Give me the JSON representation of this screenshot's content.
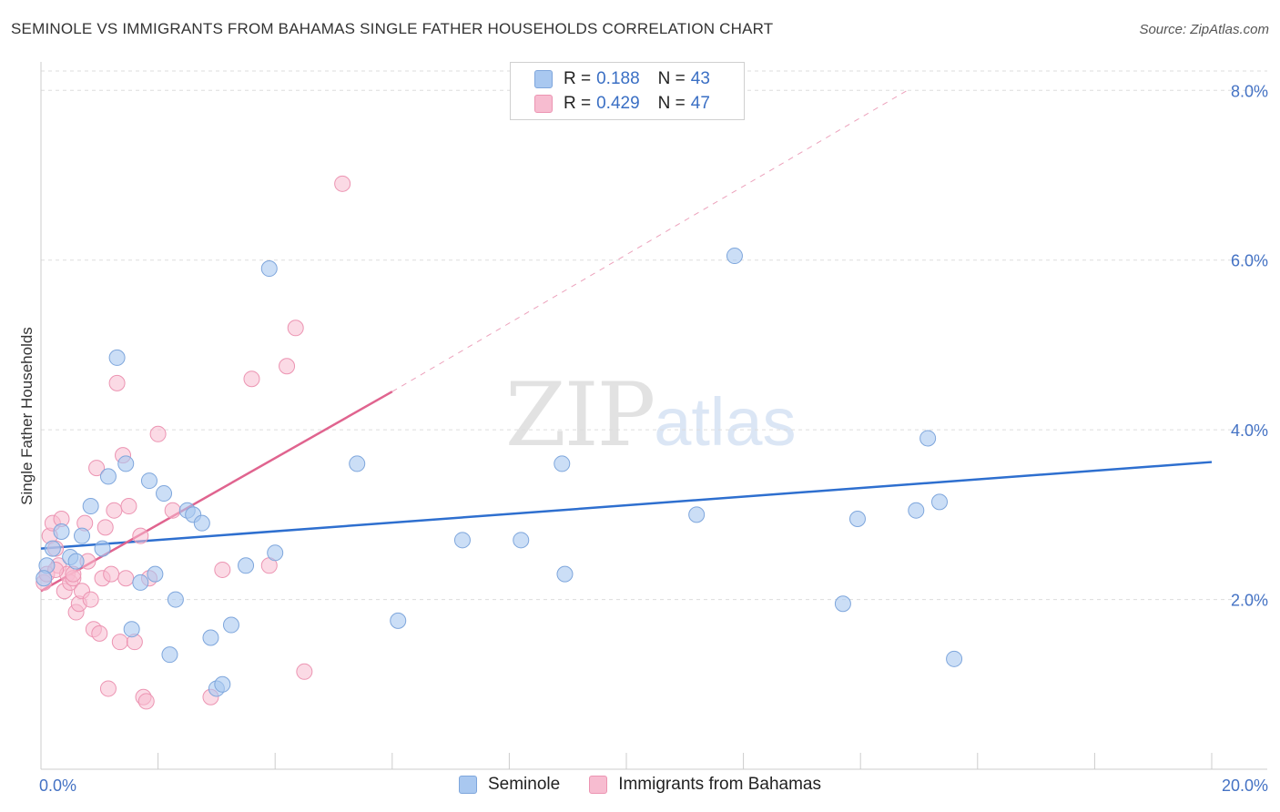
{
  "title": "SEMINOLE VS IMMIGRANTS FROM BAHAMAS SINGLE FATHER HOUSEHOLDS CORRELATION CHART",
  "source": "Source: ZipAtlas.com",
  "watermark": {
    "zip": "ZIP",
    "atlas": "atlas"
  },
  "legend": {
    "rows": [
      {
        "r_label": "R =",
        "r_value": "0.188",
        "n_label": "N =",
        "n_value": "43"
      },
      {
        "r_label": "R =",
        "r_value": "0.429",
        "n_label": "N =",
        "n_value": "47"
      }
    ]
  },
  "bottom_legend": [
    "Seminole",
    "Immigrants from Bahamas"
  ],
  "colors": {
    "seminole_fill": "#a9c8f0",
    "seminole_stroke": "#7ea6dc",
    "seminole_line": "#2e6fcf",
    "bahamas_fill": "#f7bcd0",
    "bahamas_stroke": "#ec94b2",
    "bahamas_line": "#e0648f",
    "grid": "#dddddd",
    "tick_text": "#4472c4"
  },
  "chart_data": {
    "type": "scatter",
    "title": "SEMINOLE VS IMMIGRANTS FROM BAHAMAS SINGLE FATHER HOUSEHOLDS CORRELATION CHART",
    "xlabel": "",
    "ylabel": "Single Father Households",
    "xlim": [
      0,
      20
    ],
    "ylim": [
      0,
      8.4
    ],
    "x_tick_labels": [
      "0.0%",
      "20.0%"
    ],
    "y_ticks": [
      2,
      4,
      6,
      8
    ],
    "y_tick_labels": [
      "2.0%",
      "4.0%",
      "6.0%",
      "8.0%"
    ],
    "grid": true,
    "legend_position": "top-center",
    "series": [
      {
        "name": "Seminole",
        "R": 0.188,
        "N": 43,
        "trend": {
          "x": [
            0,
            20
          ],
          "y": [
            2.6,
            3.62
          ]
        },
        "points": [
          [
            0.1,
            2.4
          ],
          [
            0.2,
            2.6
          ],
          [
            0.35,
            2.8
          ],
          [
            0.5,
            2.5
          ],
          [
            0.6,
            2.45
          ],
          [
            0.7,
            2.75
          ],
          [
            0.85,
            3.1
          ],
          [
            1.05,
            2.6
          ],
          [
            1.15,
            3.45
          ],
          [
            1.3,
            4.85
          ],
          [
            1.45,
            3.6
          ],
          [
            1.55,
            1.65
          ],
          [
            1.7,
            2.2
          ],
          [
            1.85,
            3.4
          ],
          [
            1.95,
            2.3
          ],
          [
            2.1,
            3.25
          ],
          [
            2.2,
            1.35
          ],
          [
            2.3,
            2.0
          ],
          [
            2.5,
            3.05
          ],
          [
            2.6,
            3.0
          ],
          [
            2.75,
            2.9
          ],
          [
            2.9,
            1.55
          ],
          [
            3.0,
            0.95
          ],
          [
            3.1,
            1.0
          ],
          [
            3.25,
            1.7
          ],
          [
            3.5,
            2.4
          ],
          [
            3.9,
            5.9
          ],
          [
            4.0,
            2.55
          ],
          [
            5.4,
            3.6
          ],
          [
            6.1,
            1.75
          ],
          [
            7.2,
            2.7
          ],
          [
            8.2,
            2.7
          ],
          [
            8.9,
            3.6
          ],
          [
            8.95,
            2.3
          ],
          [
            11.2,
            3.0
          ],
          [
            11.85,
            6.05
          ],
          [
            13.7,
            1.95
          ],
          [
            13.95,
            2.95
          ],
          [
            14.95,
            3.05
          ],
          [
            15.15,
            3.9
          ],
          [
            15.35,
            3.15
          ],
          [
            15.6,
            1.3
          ],
          [
            0.05,
            2.25
          ]
        ]
      },
      {
        "name": "Immigrants from Bahamas",
        "R": 0.429,
        "N": 47,
        "trend": {
          "x": [
            0,
            6
          ],
          "y": [
            2.1,
            4.45
          ]
        },
        "trend_extension": {
          "x": [
            6,
            14.8
          ],
          "y": [
            4.45,
            8.0
          ]
        },
        "points": [
          [
            0.05,
            2.2
          ],
          [
            0.1,
            2.3
          ],
          [
            0.15,
            2.75
          ],
          [
            0.2,
            2.9
          ],
          [
            0.25,
            2.6
          ],
          [
            0.3,
            2.4
          ],
          [
            0.35,
            2.95
          ],
          [
            0.4,
            2.1
          ],
          [
            0.45,
            2.3
          ],
          [
            0.5,
            2.2
          ],
          [
            0.55,
            2.25
          ],
          [
            0.6,
            1.85
          ],
          [
            0.65,
            1.95
          ],
          [
            0.7,
            2.1
          ],
          [
            0.75,
            2.9
          ],
          [
            0.8,
            2.45
          ],
          [
            0.85,
            2.0
          ],
          [
            0.9,
            1.65
          ],
          [
            0.95,
            3.55
          ],
          [
            1.0,
            1.6
          ],
          [
            1.05,
            2.25
          ],
          [
            1.1,
            2.85
          ],
          [
            1.15,
            0.95
          ],
          [
            1.2,
            2.3
          ],
          [
            1.25,
            3.05
          ],
          [
            1.3,
            4.55
          ],
          [
            1.35,
            1.5
          ],
          [
            1.4,
            3.7
          ],
          [
            1.45,
            2.25
          ],
          [
            1.5,
            3.1
          ],
          [
            1.6,
            1.5
          ],
          [
            1.7,
            2.75
          ],
          [
            1.75,
            0.85
          ],
          [
            1.8,
            0.8
          ],
          [
            1.85,
            2.25
          ],
          [
            2.0,
            3.95
          ],
          [
            2.25,
            3.05
          ],
          [
            2.9,
            0.85
          ],
          [
            3.1,
            2.35
          ],
          [
            3.6,
            4.6
          ],
          [
            3.9,
            2.4
          ],
          [
            4.2,
            4.75
          ],
          [
            4.35,
            5.2
          ],
          [
            4.5,
            1.15
          ],
          [
            5.15,
            6.9
          ],
          [
            0.55,
            2.3
          ],
          [
            0.25,
            2.35
          ]
        ]
      }
    ]
  }
}
